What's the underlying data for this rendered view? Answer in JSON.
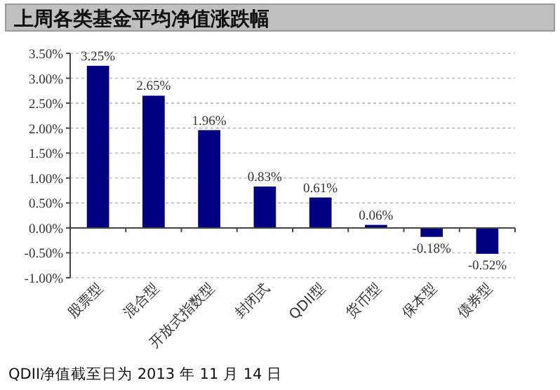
{
  "chart_data": {
    "type": "bar",
    "title": "上周各类基金平均净值涨跌幅",
    "categories": [
      "股票型",
      "混合型",
      "开放式指数型",
      "封闭式",
      "QDII型",
      "货币型",
      "保本型",
      "债券型"
    ],
    "values": [
      3.25,
      2.65,
      1.96,
      0.83,
      0.61,
      0.06,
      -0.18,
      -0.52
    ],
    "value_labels": [
      "3.25%",
      "2.65%",
      "1.96%",
      "0.83%",
      "0.61%",
      "0.06%",
      "-0.18%",
      "-0.52%"
    ],
    "color": "#000080",
    "ylim": [
      -1.0,
      3.5
    ],
    "yticks": [
      {
        "value": -1.0,
        "label": "-1.00%"
      },
      {
        "value": -0.5,
        "label": "-0.50%"
      },
      {
        "value": 0,
        "label": "0.00%"
      },
      {
        "value": 0.5,
        "label": "0.50%"
      },
      {
        "value": 1.0,
        "label": "1.00%"
      },
      {
        "value": 1.5,
        "label": "1.50%"
      },
      {
        "value": 2.0,
        "label": "2.00%"
      },
      {
        "value": 2.5,
        "label": "2.50%"
      },
      {
        "value": 3.0,
        "label": "3.00%"
      },
      {
        "value": 3.5,
        "label": "3.50%"
      }
    ],
    "grid": "y",
    "annotations": [
      "QDII净值截至日为 2013 年 11 月 14 日"
    ]
  }
}
